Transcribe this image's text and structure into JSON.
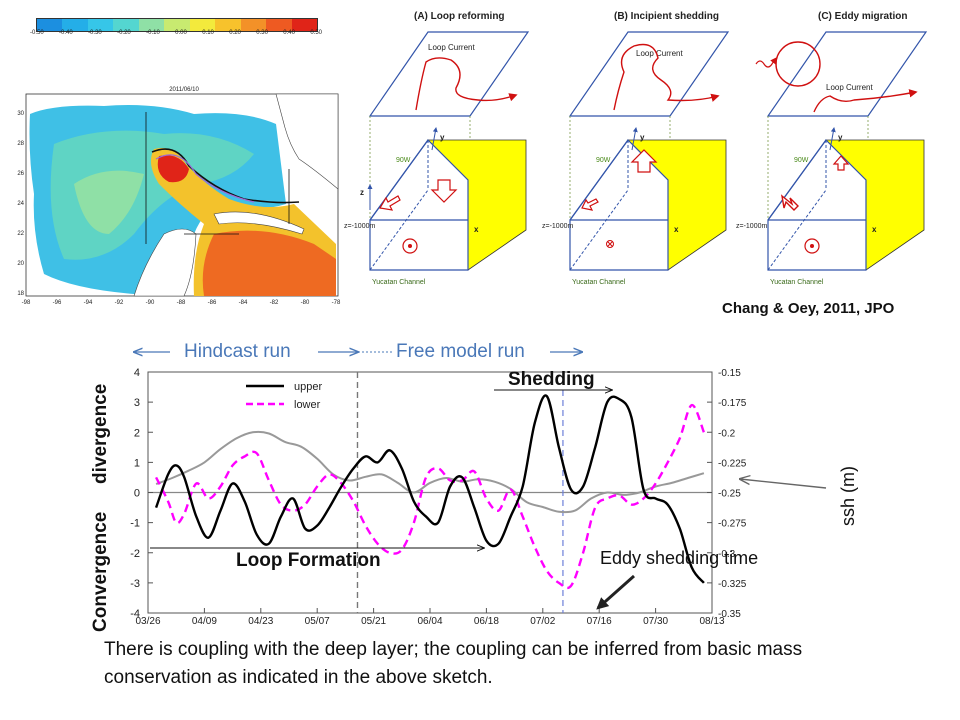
{
  "reference": "Chang & Oey, 2011, JPO",
  "map": {
    "date": "2011/06/10",
    "colorbar_ticks": [
      "-0.50",
      "-0.40",
      "-0.30",
      "-0.20",
      "-0.10",
      "0.00",
      "0.10",
      "0.20",
      "0.30",
      "0.40",
      "0.50"
    ],
    "colorbar_colors": [
      "#1c8fe0",
      "#24aee8",
      "#36c6e8",
      "#54d6d0",
      "#8fe0a6",
      "#c8ea70",
      "#f3ea3c",
      "#f7c22c",
      "#f39128",
      "#ee5a22",
      "#e02418"
    ],
    "lat_ticks": [
      "30",
      "28",
      "26",
      "24",
      "22",
      "20",
      "18"
    ],
    "lon_ticks": [
      "-98",
      "-96",
      "-94",
      "-92",
      "-90",
      "-88",
      "-86",
      "-84",
      "-82",
      "-80",
      "-78"
    ]
  },
  "sketches": [
    {
      "title": "(A) Loop reforming",
      "current_label": "Loop Current",
      "depth_label": "z=-1000m",
      "lon_label": "90W",
      "channel_label": "Yucatan Channel"
    },
    {
      "title": "(B) Incipient shedding",
      "current_label": "Loop Current",
      "depth_label": "z=-1000m",
      "lon_label": "90W",
      "channel_label": "Yucatan Channel"
    },
    {
      "title": "(C) Eddy migration",
      "current_label": "Loop Current",
      "depth_label": "z=-1000m",
      "lon_label": "90W",
      "channel_label": "Yucatan Channel"
    }
  ],
  "axis_letters": {
    "y": "y",
    "x": "x",
    "z": "z"
  },
  "phases": {
    "hindcast": "Hindcast run",
    "free": "Free model run"
  },
  "annotations": {
    "shedding": "Shedding",
    "loop_formation": "Loop Formation",
    "eddy_shedding_time": "Eddy shedding time",
    "divergence": "divergence",
    "convergence": "Convergence",
    "ssh": "ssh (m)"
  },
  "caption": "There is coupling with the deep layer; the coupling can be inferred from basic mass conservation as indicated in the above sketch.",
  "chart_data": {
    "type": "line",
    "x_tick_labels": [
      "03/26",
      "04/09",
      "04/23",
      "05/07",
      "05/21",
      "06/04",
      "06/18",
      "07/02",
      "07/16",
      "07/30",
      "08/13"
    ],
    "xlim": [
      0,
      140
    ],
    "ylim": [
      -4,
      4
    ],
    "y_ticks": [
      -4,
      -3,
      -2,
      -1,
      0,
      1,
      2,
      3,
      4
    ],
    "y2lim": [
      -0.35,
      -0.15
    ],
    "y2_tick_labels": [
      "-0.15",
      "-0.175",
      "-0.2",
      "-0.225",
      "-0.25",
      "-0.275",
      "-0.3",
      "-0.325",
      "-0.35"
    ],
    "hindcast_end_day": 52,
    "eddy_shedding_day": 103,
    "legend_position": "top-left",
    "series": [
      {
        "name": "upper",
        "color": "#000000",
        "dash": "solid",
        "axis": "left",
        "x": [
          2,
          5,
          7,
          9,
          12,
          15,
          18,
          21,
          24,
          27,
          30,
          33,
          36,
          39,
          42,
          45,
          48,
          51,
          54,
          57,
          60,
          63,
          66,
          69,
          72,
          75,
          78,
          81,
          84,
          87,
          90,
          93,
          96,
          99,
          102,
          105,
          108,
          111,
          114,
          117,
          120,
          123,
          126,
          129,
          132,
          135,
          138
        ],
        "y": [
          -0.5,
          0.6,
          0.9,
          0.5,
          -0.8,
          -1.5,
          -0.6,
          0.3,
          -0.3,
          -1.4,
          -1.7,
          -0.8,
          -0.2,
          -1.2,
          -1.1,
          -0.5,
          0.2,
          0.8,
          1.2,
          1.0,
          1.4,
          0.8,
          -0.3,
          -0.8,
          -1.0,
          0.2,
          0.5,
          -0.5,
          -1.6,
          -1.7,
          -0.8,
          0.2,
          2.3,
          3.2,
          1.5,
          0.1,
          0.2,
          1.5,
          3.0,
          3.1,
          2.5,
          0.1,
          -0.2,
          -0.4,
          -1.2,
          -2.5,
          -3.0
        ]
      },
      {
        "name": "lower",
        "color": "#ff00ff",
        "dash": "dashed",
        "axis": "left",
        "x": [
          2,
          5,
          7,
          9,
          12,
          15,
          18,
          21,
          24,
          27,
          30,
          33,
          36,
          39,
          42,
          45,
          48,
          51,
          54,
          57,
          60,
          63,
          66,
          69,
          72,
          75,
          78,
          81,
          84,
          87,
          90,
          93,
          96,
          99,
          102,
          105,
          108,
          111,
          114,
          117,
          120,
          123,
          126,
          129,
          132,
          135,
          138
        ],
        "y": [
          0.5,
          -0.3,
          -1.0,
          -0.7,
          0.3,
          -0.2,
          0.2,
          0.9,
          1.2,
          1.3,
          0.4,
          -0.4,
          -0.6,
          -0.4,
          0.2,
          0.6,
          0.3,
          -0.3,
          -1.1,
          -1.7,
          -2.0,
          -1.9,
          -1.0,
          0.5,
          0.8,
          0.4,
          0.4,
          0.7,
          -0.2,
          -0.6,
          0.1,
          -0.8,
          -1.8,
          -2.6,
          -3.0,
          -3.1,
          -2.0,
          -0.5,
          -0.2,
          -0.1,
          -0.4,
          -0.2,
          0.3,
          1.0,
          1.8,
          2.9,
          2.0
        ]
      },
      {
        "name": "ssh",
        "color": "#999999",
        "dash": "solid",
        "axis": "right",
        "x": [
          2,
          6,
          10,
          14,
          18,
          22,
          26,
          30,
          34,
          38,
          42,
          46,
          50,
          54,
          58,
          62,
          66,
          70,
          74,
          78,
          82,
          86,
          90,
          94,
          98,
          102,
          106,
          110,
          114,
          118,
          122,
          126,
          130,
          134,
          138
        ],
        "y": [
          -0.243,
          -0.238,
          -0.232,
          -0.225,
          -0.214,
          -0.205,
          -0.2,
          -0.201,
          -0.208,
          -0.212,
          -0.222,
          -0.235,
          -0.24,
          -0.237,
          -0.235,
          -0.242,
          -0.25,
          -0.242,
          -0.238,
          -0.241,
          -0.239,
          -0.241,
          -0.247,
          -0.258,
          -0.262,
          -0.266,
          -0.265,
          -0.255,
          -0.25,
          -0.252,
          -0.25,
          -0.245,
          -0.242,
          -0.238,
          -0.234
        ]
      }
    ]
  }
}
